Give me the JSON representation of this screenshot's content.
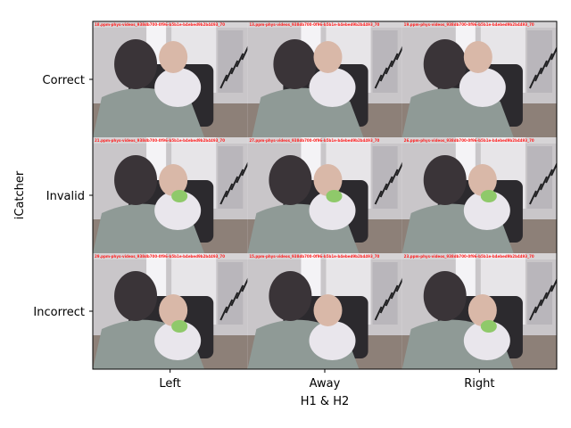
{
  "chart_data": {
    "type": "table",
    "title": "",
    "xlabel": "H1 & H2",
    "ylabel": "iCatcher",
    "columns": [
      "Left",
      "Away",
      "Right"
    ],
    "rows": [
      "Correct",
      "Invalid",
      "Incorrect"
    ],
    "cells": [
      [
        {
          "caption": "18.ppm-phys-videos_938db700-0f96-b5b1e-b4ebed9b2b4493_70",
          "scene": "held-looking-left"
        },
        {
          "caption": "13.ppm-phys-videos_938db700-0f96-b5b1e-b4ebed9b2b4493_70",
          "scene": "held-looking-down"
        },
        {
          "caption": "19.ppm-phys-videos_938db700-0f96-b5b1e-b4ebed9b2b4493_70",
          "scene": "held-looking-right"
        }
      ],
      [
        {
          "caption": "21.ppm-phys-videos_938db700-0f96-b5b1e-b4ebed9b2b4493_70",
          "scene": "held-with-toy"
        },
        {
          "caption": "27.ppm-phys-videos_938db700-0f96-b5b1e-b4ebed9b2b4493_70",
          "scene": "held-with-toy"
        },
        {
          "caption": "26.ppm-phys-videos_938db700-0f96-b5b1e-b4ebed9b2b4493_70",
          "scene": "held-with-toy"
        }
      ],
      [
        {
          "caption": "29.ppm-phys-videos_938db700-0f96-b5b1e-b4ebed9b2b4493_70",
          "scene": "held-with-toy"
        },
        {
          "caption": "15.ppm-phys-videos_938db700-0f96-b5b1e-b4ebed9b2b4493_70",
          "scene": "held-looking-front"
        },
        {
          "caption": "23.ppm-phys-videos_938db700-0f96-b5b1e-b4ebed9b2b4493_70",
          "scene": "held-with-toy"
        }
      ]
    ],
    "colors": {
      "caption": "#ff2020",
      "wall": "#c9c6c9",
      "shirt": "#8f9a96",
      "hair": "#3a3438",
      "skin": "#d9b8a8",
      "chair": "#2c2a2e",
      "floor": "#8d8078",
      "toy": "#8fc96a"
    }
  }
}
